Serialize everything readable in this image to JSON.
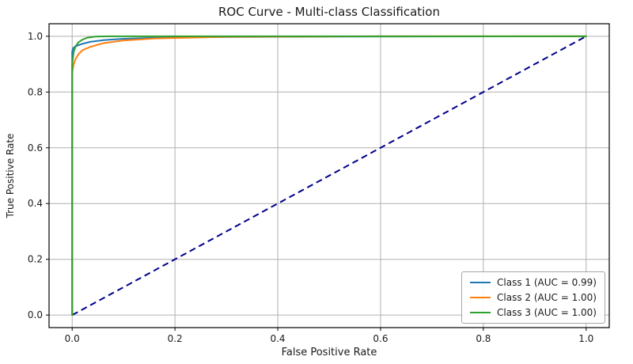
{
  "chart_data": {
    "type": "line",
    "title": "ROC Curve - Multi-class Classification",
    "xlabel": "False Positive Rate",
    "ylabel": "True Positive Rate",
    "xlim": [
      -0.045,
      1.045
    ],
    "ylim": [
      -0.045,
      1.045
    ],
    "xticks": [
      0.0,
      0.2,
      0.4,
      0.6,
      0.8,
      1.0
    ],
    "yticks": [
      0.0,
      0.2,
      0.4,
      0.6,
      0.8,
      1.0
    ],
    "xtick_labels": [
      "0.0",
      "0.2",
      "0.4",
      "0.6",
      "0.8",
      "1.0"
    ],
    "ytick_labels": [
      "0.0",
      "0.2",
      "0.4",
      "0.6",
      "0.8",
      "1.0"
    ],
    "grid": true,
    "grid_color": "#b0b0b0",
    "spine_color": "#000000",
    "legend_position": "lower right",
    "series": [
      {
        "name": "Class 1 (AUC = 0.99)",
        "color": "#1f77b4",
        "x": [
          0,
          0,
          0.002,
          0.006,
          0.012,
          0.02,
          0.035,
          0.06,
          0.1,
          0.15,
          0.25,
          0.5,
          1
        ],
        "y": [
          0,
          0.945,
          0.958,
          0.963,
          0.968,
          0.973,
          0.98,
          0.986,
          0.991,
          0.994,
          0.997,
          0.999,
          1
        ]
      },
      {
        "name": "Class 2 (AUC = 1.00)",
        "color": "#ff7f0e",
        "x": [
          0,
          0,
          0.003,
          0.007,
          0.012,
          0.02,
          0.035,
          0.06,
          0.1,
          0.16,
          0.3,
          0.6,
          1
        ],
        "y": [
          0,
          0.87,
          0.9,
          0.92,
          0.935,
          0.95,
          0.962,
          0.975,
          0.985,
          0.992,
          0.998,
          1,
          1
        ]
      },
      {
        "name": "Class 3 (AUC = 1.00)",
        "color": "#2ca02c",
        "x": [
          0,
          0,
          0.003,
          0.007,
          0.012,
          0.02,
          0.03,
          0.045,
          0.07,
          1
        ],
        "y": [
          0,
          0.9,
          0.945,
          0.965,
          0.978,
          0.988,
          0.995,
          0.999,
          1,
          1
        ]
      }
    ],
    "reference_line": {
      "name": "chance-diagonal",
      "color": "#00008b",
      "style": "dashed",
      "x": [
        0,
        1
      ],
      "y": [
        0,
        1
      ]
    }
  }
}
